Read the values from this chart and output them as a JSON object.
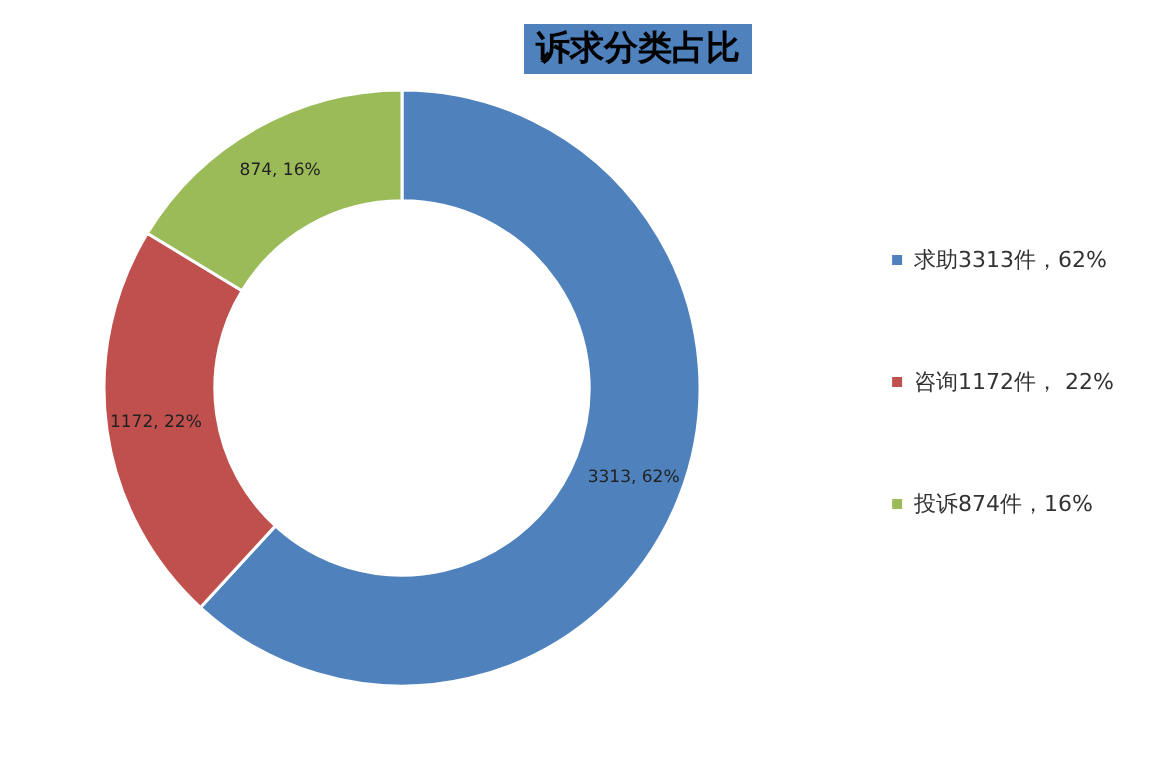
{
  "chart_data": {
    "type": "donut",
    "title": "诉求分类占比",
    "categories": [
      "求助3313件，62%",
      "咨询1172件， 22%",
      "投诉874件，16%"
    ],
    "values": [
      3313,
      1172,
      874
    ],
    "colors": [
      "#4f81bd",
      "#c0504d",
      "#9bbb59"
    ],
    "value_labels": [
      "3313, 62%",
      "1172, 22%",
      "874, 16%"
    ],
    "legend": "right"
  }
}
